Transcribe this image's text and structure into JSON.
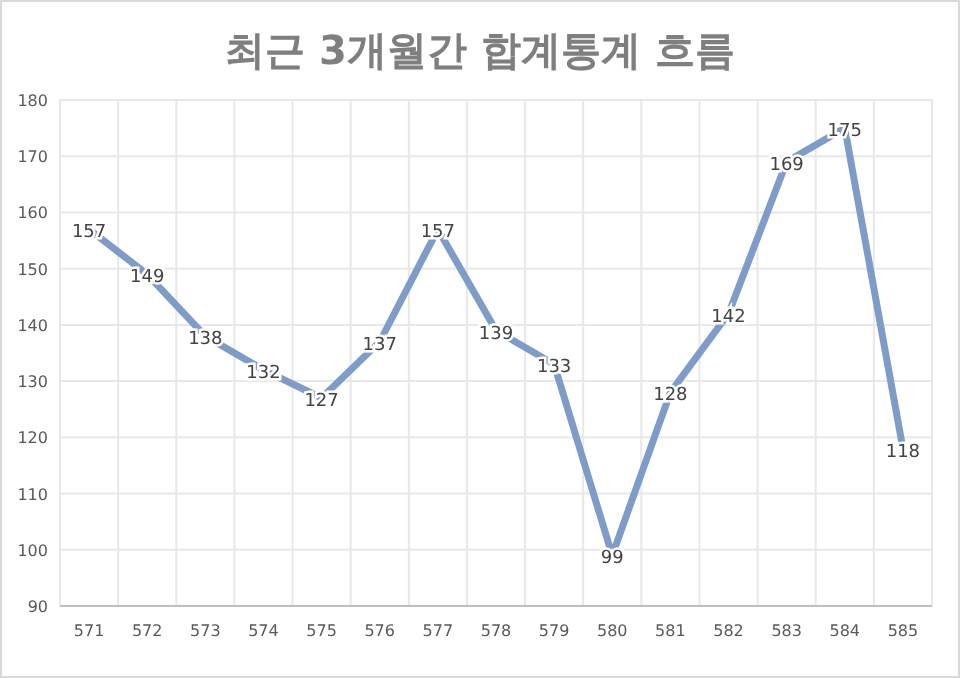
{
  "chart_data": {
    "type": "line",
    "title": "최근 3개월간 합계통계 흐름",
    "categories": [
      "571",
      "572",
      "573",
      "574",
      "575",
      "576",
      "577",
      "578",
      "579",
      "580",
      "581",
      "582",
      "583",
      "584",
      "585"
    ],
    "series": [
      {
        "color": "#7f9cc9",
        "values": [
          157,
          149,
          138,
          132,
          127,
          137,
          157,
          139,
          133,
          99,
          128,
          142,
          169,
          175,
          118
        ]
      }
    ],
    "ylim": [
      90,
      180
    ],
    "yticks": [
      90,
      100,
      110,
      120,
      130,
      140,
      150,
      160,
      170,
      180
    ],
    "grid": true,
    "data_labels": true,
    "marker": "none",
    "line_style": "solid"
  }
}
